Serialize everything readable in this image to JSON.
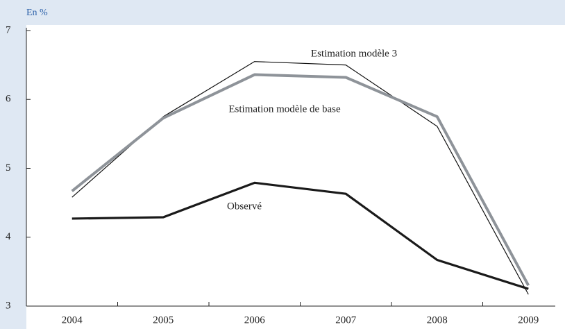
{
  "chart_data": {
    "type": "line",
    "y_label": "En %",
    "categories": [
      "2004",
      "2005",
      "2006",
      "2007",
      "2008",
      "2009"
    ],
    "series": [
      {
        "name": "Estimation modèle 3",
        "color": "#111111",
        "values": [
          4.58,
          5.75,
          6.55,
          6.5,
          5.61,
          3.17
        ]
      },
      {
        "name": "Estimation modèle de base",
        "color": "#8e9399",
        "values": [
          4.67,
          5.73,
          6.36,
          6.32,
          5.75,
          3.3
        ]
      },
      {
        "name": "Observé",
        "color": "#1a1a1a",
        "values": [
          4.27,
          4.29,
          4.79,
          4.63,
          3.67,
          3.25
        ]
      }
    ],
    "ylim": [
      3,
      7
    ],
    "yticks": [
      3,
      4,
      5,
      6,
      7
    ],
    "grid": false
  }
}
